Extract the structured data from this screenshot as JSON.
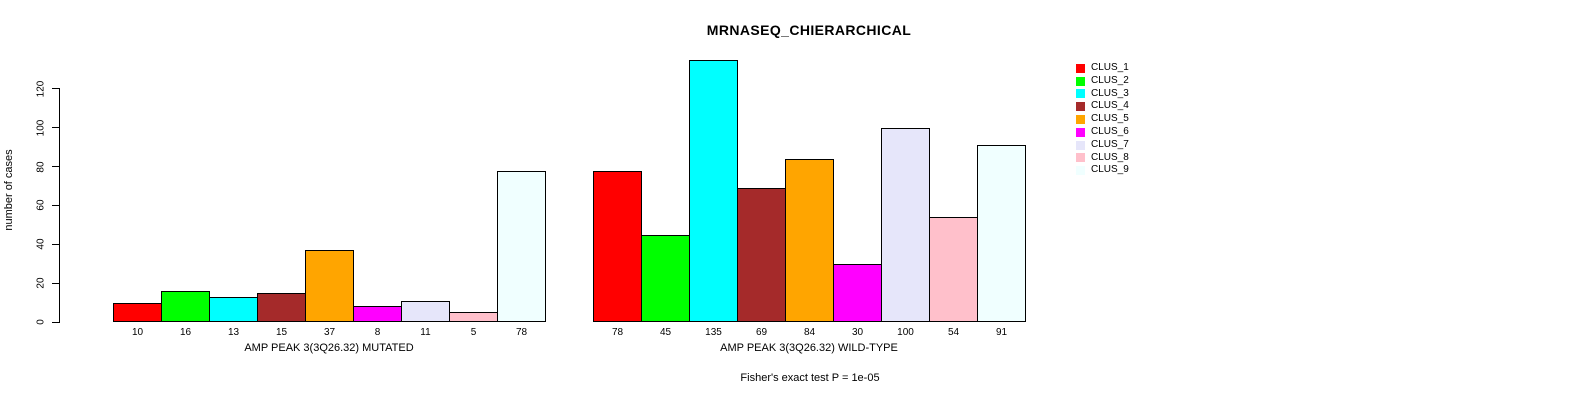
{
  "chart_data": {
    "type": "bar",
    "title": "MRNASEQ_CHIERARCHICAL",
    "ylabel": "number of cases",
    "xlabel": "",
    "yticks": [
      0,
      20,
      40,
      60,
      80,
      100,
      120
    ],
    "ylim": [
      0,
      135
    ],
    "grid": false,
    "legend_position": "right",
    "clusters": [
      "CLUS_1",
      "CLUS_2",
      "CLUS_3",
      "CLUS_4",
      "CLUS_5",
      "CLUS_6",
      "CLUS_7",
      "CLUS_8",
      "CLUS_9"
    ],
    "palette": [
      "#FF0000",
      "#00FF00",
      "#00FFFF",
      "#A52A2A",
      "#FFA500",
      "#FF00FF",
      "#E6E6FA",
      "#FFC0CB",
      "#F0FFFF"
    ],
    "groups": [
      {
        "label": "AMP PEAK 3(3Q26.32) MUTATED",
        "values": [
          10,
          16,
          13,
          15,
          37,
          8,
          11,
          5,
          78
        ]
      },
      {
        "label": "AMP PEAK 3(3Q26.32) WILD-TYPE",
        "values": [
          78,
          45,
          135,
          69,
          84,
          30,
          100,
          54,
          91
        ]
      }
    ],
    "annotation": "Fisher's exact test P = 1e-05"
  }
}
